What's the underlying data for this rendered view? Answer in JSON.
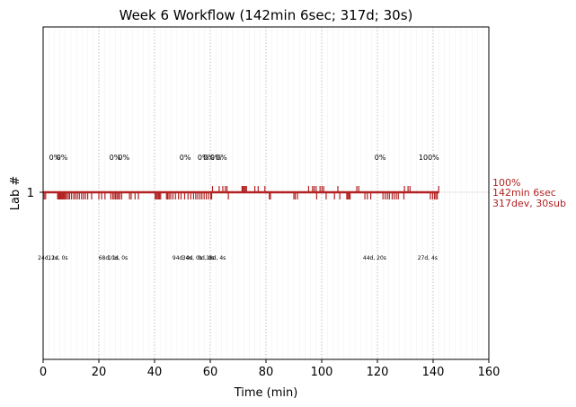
{
  "chart_data": {
    "type": "timeline",
    "title": "Week 6 Workflow (142min 6sec; 317d; 30s)",
    "xlabel": "Time (min)",
    "ylabel": "Lab #",
    "xlim": [
      0,
      160
    ],
    "xticks": [
      0,
      20,
      40,
      60,
      80,
      100,
      120,
      140,
      160
    ],
    "yticks": [
      1
    ],
    "grid": "x dotted",
    "line_color": "#b22222",
    "timeline_end": 142.1,
    "right_annotation": [
      "100%",
      "142min 6sec",
      "317dev, 30sub"
    ],
    "percent_labels": [
      {
        "x": 4.2,
        "text": "0%"
      },
      {
        "x": 6.8,
        "text": "0%"
      },
      {
        "x": 25.8,
        "text": "0%"
      },
      {
        "x": 29.0,
        "text": "0%"
      },
      {
        "x": 51.0,
        "text": "0%"
      },
      {
        "x": 57.5,
        "text": "0%"
      },
      {
        "x": 59.5,
        "text": "0%"
      },
      {
        "x": 62.0,
        "text": "0%"
      },
      {
        "x": 64.0,
        "text": "0%"
      },
      {
        "x": 121.0,
        "text": "0%"
      },
      {
        "x": 138.5,
        "text": "100%"
      }
    ],
    "time_labels": [
      {
        "x": 1.7,
        "text": "24d, 1s"
      },
      {
        "x": 5.3,
        "text": "12d, 0s"
      },
      {
        "x": 23.5,
        "text": "68d, 1s"
      },
      {
        "x": 26.8,
        "text": "10d, 0s"
      },
      {
        "x": 50.0,
        "text": "94d, 0s"
      },
      {
        "x": 53.5,
        "text": "34d, 0s"
      },
      {
        "x": 58.5,
        "text": "0d, 0s"
      },
      {
        "x": 62.0,
        "text": "18d, 4s"
      },
      {
        "x": 119.0,
        "text": "44d, 20s"
      },
      {
        "x": 138.0,
        "text": "27d, 4s"
      }
    ],
    "ticks_below": [
      0.4,
      0.9,
      5.2,
      5.5,
      5.8,
      6.1,
      6.4,
      6.7,
      7.0,
      7.3,
      7.6,
      8.0,
      8.4,
      9.0,
      9.5,
      10.2,
      11.0,
      11.6,
      12.3,
      13.0,
      13.8,
      14.5,
      15.2,
      16.0,
      17.4,
      20.0,
      21.0,
      22.2,
      24.3,
      25.0,
      25.5,
      26.0,
      26.5,
      27.0,
      27.5,
      28.2,
      31.0,
      31.6,
      33.0,
      34.2,
      40.2,
      40.6,
      41.0,
      41.4,
      41.8,
      42.2,
      44.3,
      44.7,
      45.2,
      45.8,
      46.6,
      47.5,
      48.6,
      49.5,
      50.8,
      52.0,
      53.0,
      54.0,
      54.8,
      55.5,
      56.3,
      57.0,
      57.8,
      58.6,
      59.4,
      60.2,
      60.5,
      66.5,
      81.2,
      81.6,
      90.0,
      90.5,
      91.3,
      98.2,
      101.6,
      104.6,
      106.5,
      109.0,
      109.4,
      109.8,
      110.2,
      115.5,
      116.4,
      117.6,
      122.0,
      122.8,
      123.6,
      124.3,
      125.3,
      126.0,
      126.8,
      127.5,
      129.5,
      139.0,
      139.8,
      140.5,
      141.0,
      141.5
    ],
    "ticks_above": [
      60.8,
      63.2,
      64.5,
      65.4,
      66.0,
      71.4,
      71.8,
      72.2,
      72.6,
      73.0,
      76.0,
      77.2,
      79.6,
      95.3,
      96.7,
      97.3,
      98.0,
      99.4,
      100.1,
      100.7,
      105.8,
      112.6,
      113.3,
      129.7,
      131.0,
      131.7,
      142.0
    ]
  }
}
